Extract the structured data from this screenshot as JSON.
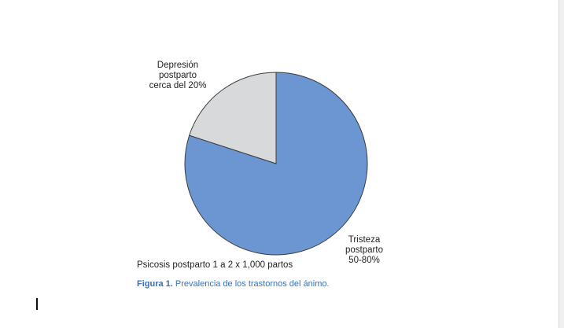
{
  "chart_data": {
    "type": "pie",
    "slices": [
      {
        "label": "Tristeza postparto 50-80%",
        "value": 80,
        "color": "#6b96d1"
      },
      {
        "label": "Depresión postparto cerca del 20%",
        "value": 20,
        "color": "#d8d9da"
      }
    ],
    "annotations": [
      "Psicosis postparto 1 a 2 x 1,000 partos"
    ],
    "stroke_color": "#3c3c3c"
  },
  "labels": {
    "depresion": [
      "Depresión",
      "postparto",
      "cerca del 20%"
    ],
    "tristeza": [
      "Tristeza",
      "postparto",
      "50-80%"
    ],
    "psicosis": "Psicosis postparto 1 a 2 x 1,000 partos"
  },
  "caption": {
    "number": "Figura 1.",
    "text": " Prevalencia de los trastornos del ánimo.",
    "color": "#3a6fb7"
  }
}
